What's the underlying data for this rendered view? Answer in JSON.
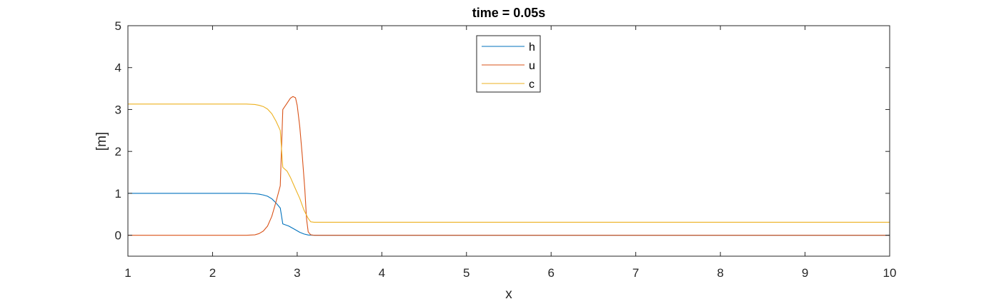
{
  "chart_data": {
    "type": "line",
    "title": "time = 0.05s",
    "xlabel": "x",
    "ylabel": "[m]",
    "xlim": [
      1,
      10
    ],
    "ylim": [
      -0.5,
      5
    ],
    "xticks": [
      1,
      2,
      3,
      4,
      5,
      6,
      7,
      8,
      9,
      10
    ],
    "yticks": [
      0,
      1,
      2,
      3,
      4,
      5
    ],
    "grid": false,
    "box": true,
    "legend": "top-center",
    "series": [
      {
        "name": "h",
        "color": "#0072BD",
        "x": [
          1.0,
          2.4,
          2.5,
          2.55,
          2.6,
          2.65,
          2.7,
          2.75,
          2.8,
          2.83,
          2.9,
          2.97,
          3.03,
          3.08,
          3.13,
          3.2,
          10.0
        ],
        "y": [
          1.0,
          1.0,
          0.99,
          0.98,
          0.96,
          0.93,
          0.87,
          0.77,
          0.65,
          0.27,
          0.22,
          0.14,
          0.07,
          0.03,
          0.005,
          0.0,
          0.0
        ]
      },
      {
        "name": "u",
        "color": "#D95319",
        "x": [
          1.0,
          2.4,
          2.5,
          2.55,
          2.6,
          2.65,
          2.7,
          2.75,
          2.8,
          2.83,
          2.88,
          2.92,
          2.95,
          2.98,
          3.0,
          3.03,
          3.06,
          3.09,
          3.11,
          3.13,
          3.16,
          3.2,
          10.0
        ],
        "y": [
          0.0,
          0.0,
          0.01,
          0.04,
          0.1,
          0.22,
          0.45,
          0.8,
          1.18,
          3.0,
          3.15,
          3.27,
          3.31,
          3.28,
          3.1,
          2.6,
          1.9,
          1.1,
          0.4,
          0.08,
          0.01,
          0.0,
          0.0
        ]
      },
      {
        "name": "c",
        "color": "#EDB120",
        "x": [
          1.0,
          2.4,
          2.5,
          2.55,
          2.6,
          2.65,
          2.7,
          2.75,
          2.8,
          2.83,
          2.88,
          2.92,
          2.97,
          3.03,
          3.08,
          3.13,
          3.16,
          3.2,
          10.0
        ],
        "y": [
          3.13,
          3.13,
          3.12,
          3.1,
          3.07,
          3.01,
          2.9,
          2.72,
          2.5,
          1.62,
          1.53,
          1.38,
          1.15,
          0.88,
          0.6,
          0.4,
          0.32,
          0.31,
          0.31
        ]
      }
    ]
  }
}
